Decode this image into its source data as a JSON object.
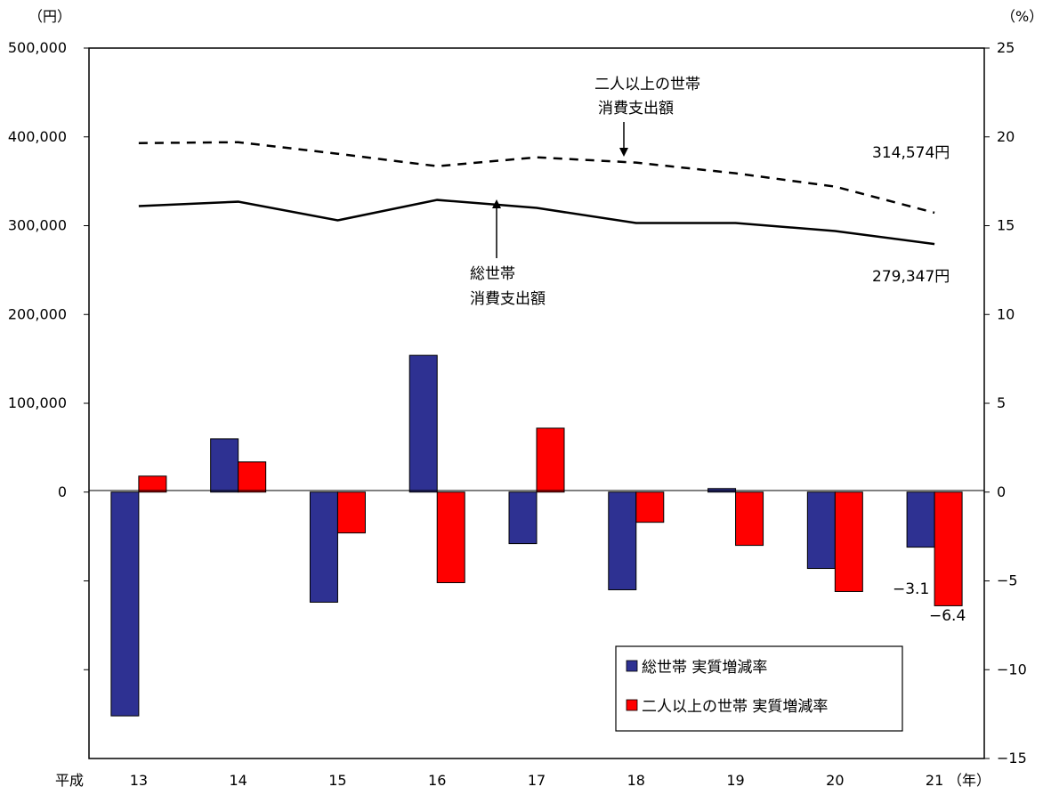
{
  "chart_data": {
    "type": "bar",
    "title": "",
    "categories": [
      "13",
      "14",
      "15",
      "16",
      "17",
      "18",
      "19",
      "20",
      "21"
    ],
    "x_prefix": "平成",
    "x_unit": "（年）",
    "y_left": {
      "unit": "（円）",
      "ylim": [
        -300000,
        500000
      ],
      "ticks": [
        0,
        100000,
        200000,
        300000,
        400000,
        500000
      ],
      "tick_labels": [
        "0",
        "100,000",
        "200,000",
        "300,000",
        "400,000",
        "500,000"
      ]
    },
    "y_right": {
      "unit": "（%）",
      "ylim": [
        -15,
        25
      ],
      "ticks": [
        -15,
        -10,
        -5,
        0,
        5,
        10,
        15,
        20,
        25
      ],
      "tick_labels": [
        "−15",
        "−10",
        "−5",
        "0",
        "5",
        "10",
        "15",
        "20",
        "25"
      ]
    },
    "bar_series": [
      {
        "name": "総世帯 実質増減率",
        "color": "#2e3192",
        "values": [
          -12.6,
          3.0,
          -6.2,
          7.7,
          -2.9,
          -5.5,
          0.2,
          -4.3,
          -3.1
        ]
      },
      {
        "name": "二人以上の世帯 実質増減率",
        "color": "#ff0000",
        "values": [
          0.9,
          1.7,
          -2.3,
          -5.1,
          3.6,
          -1.7,
          -3.0,
          -5.6,
          -6.4
        ]
      }
    ],
    "line_series": [
      {
        "name": "二人以上の世帯 消費支出額",
        "style": "dashed",
        "values": [
          393000,
          394000,
          381000,
          367000,
          377000,
          371000,
          359000,
          344000,
          314574
        ]
      },
      {
        "name": "総世帯 消費支出額",
        "style": "solid",
        "values": [
          322000,
          327000,
          306000,
          329000,
          320000,
          303000,
          303000,
          294000,
          279347
        ]
      }
    ],
    "annotations": {
      "dashed_line_label_1": "二人以上の世帯",
      "dashed_line_label_2": "消費支出額",
      "solid_line_label_1": "総世帯",
      "solid_line_label_2": "消費支出額",
      "dashed_end_value": "314,574円",
      "solid_end_value": "279,347円",
      "bar_label_total_last": "−3.1",
      "bar_label_two_last": "−6.4"
    },
    "legend": {
      "position": "bottom-right",
      "items": [
        "総世帯 実質増減率",
        "二人以上の世帯 実質増減率"
      ]
    }
  }
}
